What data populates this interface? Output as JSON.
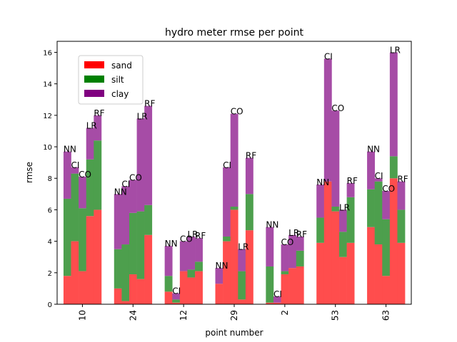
{
  "chart_data": {
    "type": "bar",
    "stacked": true,
    "title": "hydro meter rmse per point",
    "xlabel": "point number",
    "ylabel": "rmse",
    "ylim": [
      0,
      16.7
    ],
    "yticks": [
      0,
      2,
      4,
      6,
      8,
      10,
      12,
      14,
      16
    ],
    "categories": [
      "10",
      "24",
      "12",
      "29",
      "2",
      "53",
      "63"
    ],
    "models": [
      "NN",
      "CI",
      "CO",
      "LR",
      "RF"
    ],
    "legend": {
      "placement": "upper-left",
      "entries": [
        {
          "name": "sand",
          "color": "#ff0000"
        },
        {
          "name": "silt",
          "color": "#008000"
        },
        {
          "name": "clay",
          "color": "#800080"
        }
      ]
    },
    "series": [
      {
        "name": "sand",
        "color": "#ff4d4d",
        "values": [
          [
            1.8,
            4.0,
            2.1,
            5.6,
            6.0
          ],
          [
            1.0,
            0.2,
            1.9,
            1.6,
            4.4
          ],
          [
            0.8,
            0.1,
            2.1,
            1.7,
            2.1
          ],
          [
            1.3,
            4.0,
            6.0,
            0.3,
            4.7
          ],
          [
            0.1,
            0.1,
            1.9,
            2.3,
            2.4
          ],
          [
            3.9,
            7.8,
            5.9,
            3.0,
            3.9
          ],
          [
            4.9,
            3.8,
            1.8,
            8.0,
            3.9
          ]
        ]
      },
      {
        "name": "silt",
        "color": "#4d9f4d",
        "values": [
          [
            4.9,
            4.3,
            4.0,
            3.6,
            4.4
          ],
          [
            2.5,
            3.6,
            3.9,
            4.3,
            1.9
          ],
          [
            1.0,
            0.2,
            0.0,
            0.5,
            0.6
          ],
          [
            0.0,
            0.3,
            0.2,
            1.8,
            2.3
          ],
          [
            2.3,
            0.0,
            0.2,
            0.0,
            1.0
          ],
          [
            1.6,
            0.0,
            0.3,
            1.6,
            2.9
          ],
          [
            2.4,
            4.0,
            3.6,
            1.4,
            2.1
          ]
        ]
      },
      {
        "name": "clay",
        "color": "#a64ca6",
        "values": [
          [
            3.0,
            0.4,
            2.0,
            2.0,
            1.6
          ],
          [
            3.5,
            3.7,
            2.1,
            5.9,
            6.3
          ],
          [
            1.9,
            0.4,
            1.9,
            2.1,
            1.5
          ],
          [
            1.0,
            4.4,
            5.9,
            1.4,
            2.3
          ],
          [
            2.5,
            0.4,
            1.7,
            2.1,
            0.9
          ],
          [
            2.1,
            7.8,
            6.1,
            1.4,
            0.9
          ],
          [
            2.4,
            0.2,
            1.8,
            6.6,
            1.8
          ]
        ]
      }
    ]
  }
}
